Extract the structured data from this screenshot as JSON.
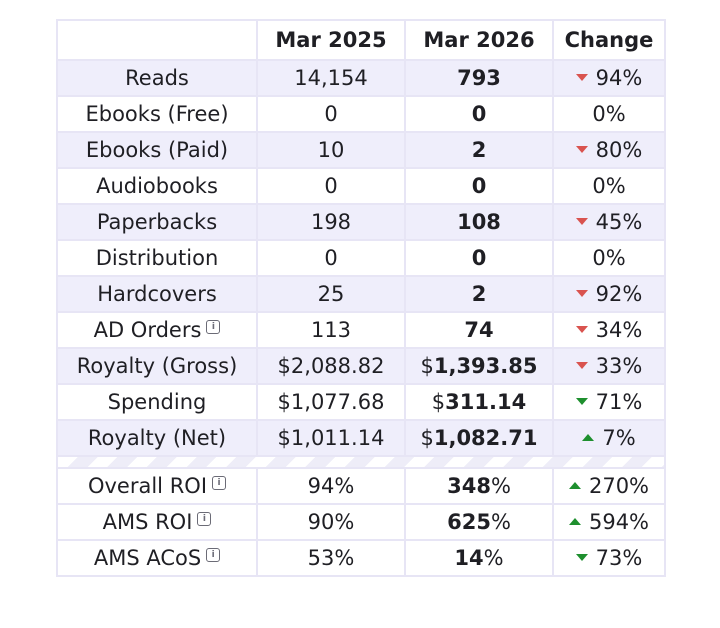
{
  "table": {
    "headers": [
      "",
      "Mar 2025",
      "Mar 2026",
      "Change"
    ],
    "rows": [
      {
        "label": "Reads",
        "a": "14,154",
        "b": "793",
        "b_prefix": "",
        "b_suffix": "",
        "change": "94%",
        "dir": "down-red",
        "info": false
      },
      {
        "label": "Ebooks (Free)",
        "a": "0",
        "b": "0",
        "b_prefix": "",
        "b_suffix": "",
        "change": "0%",
        "dir": "none",
        "info": false
      },
      {
        "label": "Ebooks (Paid)",
        "a": "10",
        "b": "2",
        "b_prefix": "",
        "b_suffix": "",
        "change": "80%",
        "dir": "down-red",
        "info": false
      },
      {
        "label": "Audiobooks",
        "a": "0",
        "b": "0",
        "b_prefix": "",
        "b_suffix": "",
        "change": "0%",
        "dir": "none",
        "info": false
      },
      {
        "label": "Paperbacks",
        "a": "198",
        "b": "108",
        "b_prefix": "",
        "b_suffix": "",
        "change": "45%",
        "dir": "down-red",
        "info": false
      },
      {
        "label": "Distribution",
        "a": "0",
        "b": "0",
        "b_prefix": "",
        "b_suffix": "",
        "change": "0%",
        "dir": "none",
        "info": false
      },
      {
        "label": "Hardcovers",
        "a": "25",
        "b": "2",
        "b_prefix": "",
        "b_suffix": "",
        "change": "92%",
        "dir": "down-red",
        "info": false
      },
      {
        "label": "AD Orders",
        "a": "113",
        "b": "74",
        "b_prefix": "",
        "b_suffix": "",
        "change": "34%",
        "dir": "down-red",
        "info": true
      },
      {
        "label": "Royalty (Gross)",
        "a": "$2,088.82",
        "b": "1,393.85",
        "b_prefix": "$",
        "b_suffix": "",
        "change": "33%",
        "dir": "down-red",
        "info": false
      },
      {
        "label": "Spending",
        "a": "$1,077.68",
        "b": "311.14",
        "b_prefix": "$",
        "b_suffix": "",
        "change": "71%",
        "dir": "down-green",
        "info": false
      },
      {
        "label": "Royalty (Net)",
        "a": "$1,011.14",
        "b": "1,082.71",
        "b_prefix": "$",
        "b_suffix": "",
        "change": "7%",
        "dir": "up-green",
        "info": false
      }
    ],
    "roi_rows": [
      {
        "label": "Overall ROI",
        "a": "94%",
        "b": "348",
        "b_prefix": "",
        "b_suffix": "%",
        "change": "270%",
        "dir": "up-green",
        "info": true
      },
      {
        "label": "AMS ROI",
        "a": "90%",
        "b": "625",
        "b_prefix": "",
        "b_suffix": "%",
        "change": "594%",
        "dir": "up-green",
        "info": true
      },
      {
        "label": "AMS ACoS",
        "a": "53%",
        "b": "14",
        "b_prefix": "",
        "b_suffix": "%",
        "change": "73%",
        "dir": "down-green",
        "info": true
      }
    ]
  },
  "colors": {
    "decline_bad": "#d9534f",
    "positive": "#1e8f2e",
    "row_shade": "#efeefb",
    "border": "#e7e5f5"
  },
  "icons": {
    "info": "info-icon",
    "up": "triangle-up-icon",
    "down": "triangle-down-icon"
  },
  "info_glyph": "i"
}
